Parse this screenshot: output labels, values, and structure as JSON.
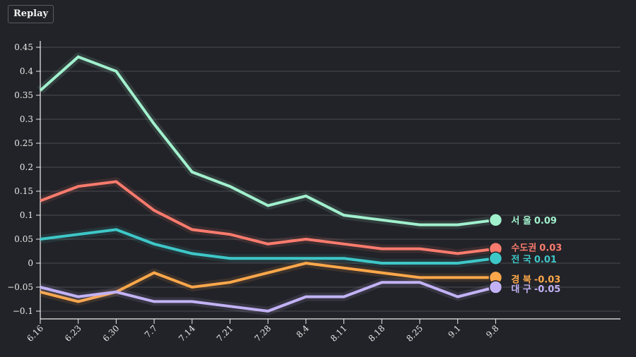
{
  "toolbar": {
    "replay_label": "Replay"
  },
  "chart_data": {
    "type": "line",
    "title": "",
    "xlabel": "",
    "ylabel": "",
    "x": [
      "6.16",
      "6.23",
      "6.30",
      "7.7",
      "7.14",
      "7.21",
      "7.28",
      "8.4",
      "8.11",
      "8.18",
      "8.25",
      "9.1",
      "9.8"
    ],
    "ylim": [
      -0.1,
      0.45
    ],
    "yticks": [
      0.45,
      0.4,
      0.35,
      0.3,
      0.25,
      0.2,
      0.15,
      0.1,
      0.05,
      0,
      -0.05,
      -0.1
    ],
    "ytick_labels": [
      "0.45",
      "0.4",
      "0.35",
      "0.3",
      "0.25",
      "0.2",
      "0.15",
      "0.1",
      "0.05",
      "0",
      "−0.05",
      "−0.1"
    ],
    "grid": true,
    "legend": "end-of-line labels",
    "series": [
      {
        "name": "서 울",
        "end_label": "0.09",
        "color": "#a1f0cd",
        "values": [
          0.36,
          0.43,
          0.4,
          0.29,
          0.19,
          0.16,
          0.12,
          0.14,
          0.1,
          0.09,
          0.08,
          0.08,
          0.09
        ]
      },
      {
        "name": "수도권",
        "end_label": "0.03",
        "color": "#fa7b6d",
        "values": [
          0.13,
          0.16,
          0.17,
          0.11,
          0.07,
          0.06,
          0.04,
          0.05,
          0.04,
          0.03,
          0.03,
          0.02,
          0.03
        ]
      },
      {
        "name": "전 국",
        "end_label": "0.01",
        "color": "#3ec7c8",
        "values": [
          0.05,
          0.06,
          0.07,
          0.04,
          0.02,
          0.01,
          0.01,
          0.01,
          0.01,
          0.0,
          0.0,
          0.0,
          0.01
        ]
      },
      {
        "name": "경 북",
        "end_label": "-0.03",
        "color": "#fca74a",
        "values": [
          -0.06,
          -0.08,
          -0.06,
          -0.02,
          -0.05,
          -0.04,
          -0.02,
          0.0,
          -0.01,
          -0.02,
          -0.03,
          -0.03,
          -0.03
        ]
      },
      {
        "name": "대 구",
        "end_label": "-0.05",
        "color": "#c2b2f5",
        "values": [
          -0.05,
          -0.07,
          -0.06,
          -0.08,
          -0.08,
          -0.09,
          -0.1,
          -0.07,
          -0.07,
          -0.04,
          -0.04,
          -0.07,
          -0.05
        ]
      }
    ]
  }
}
